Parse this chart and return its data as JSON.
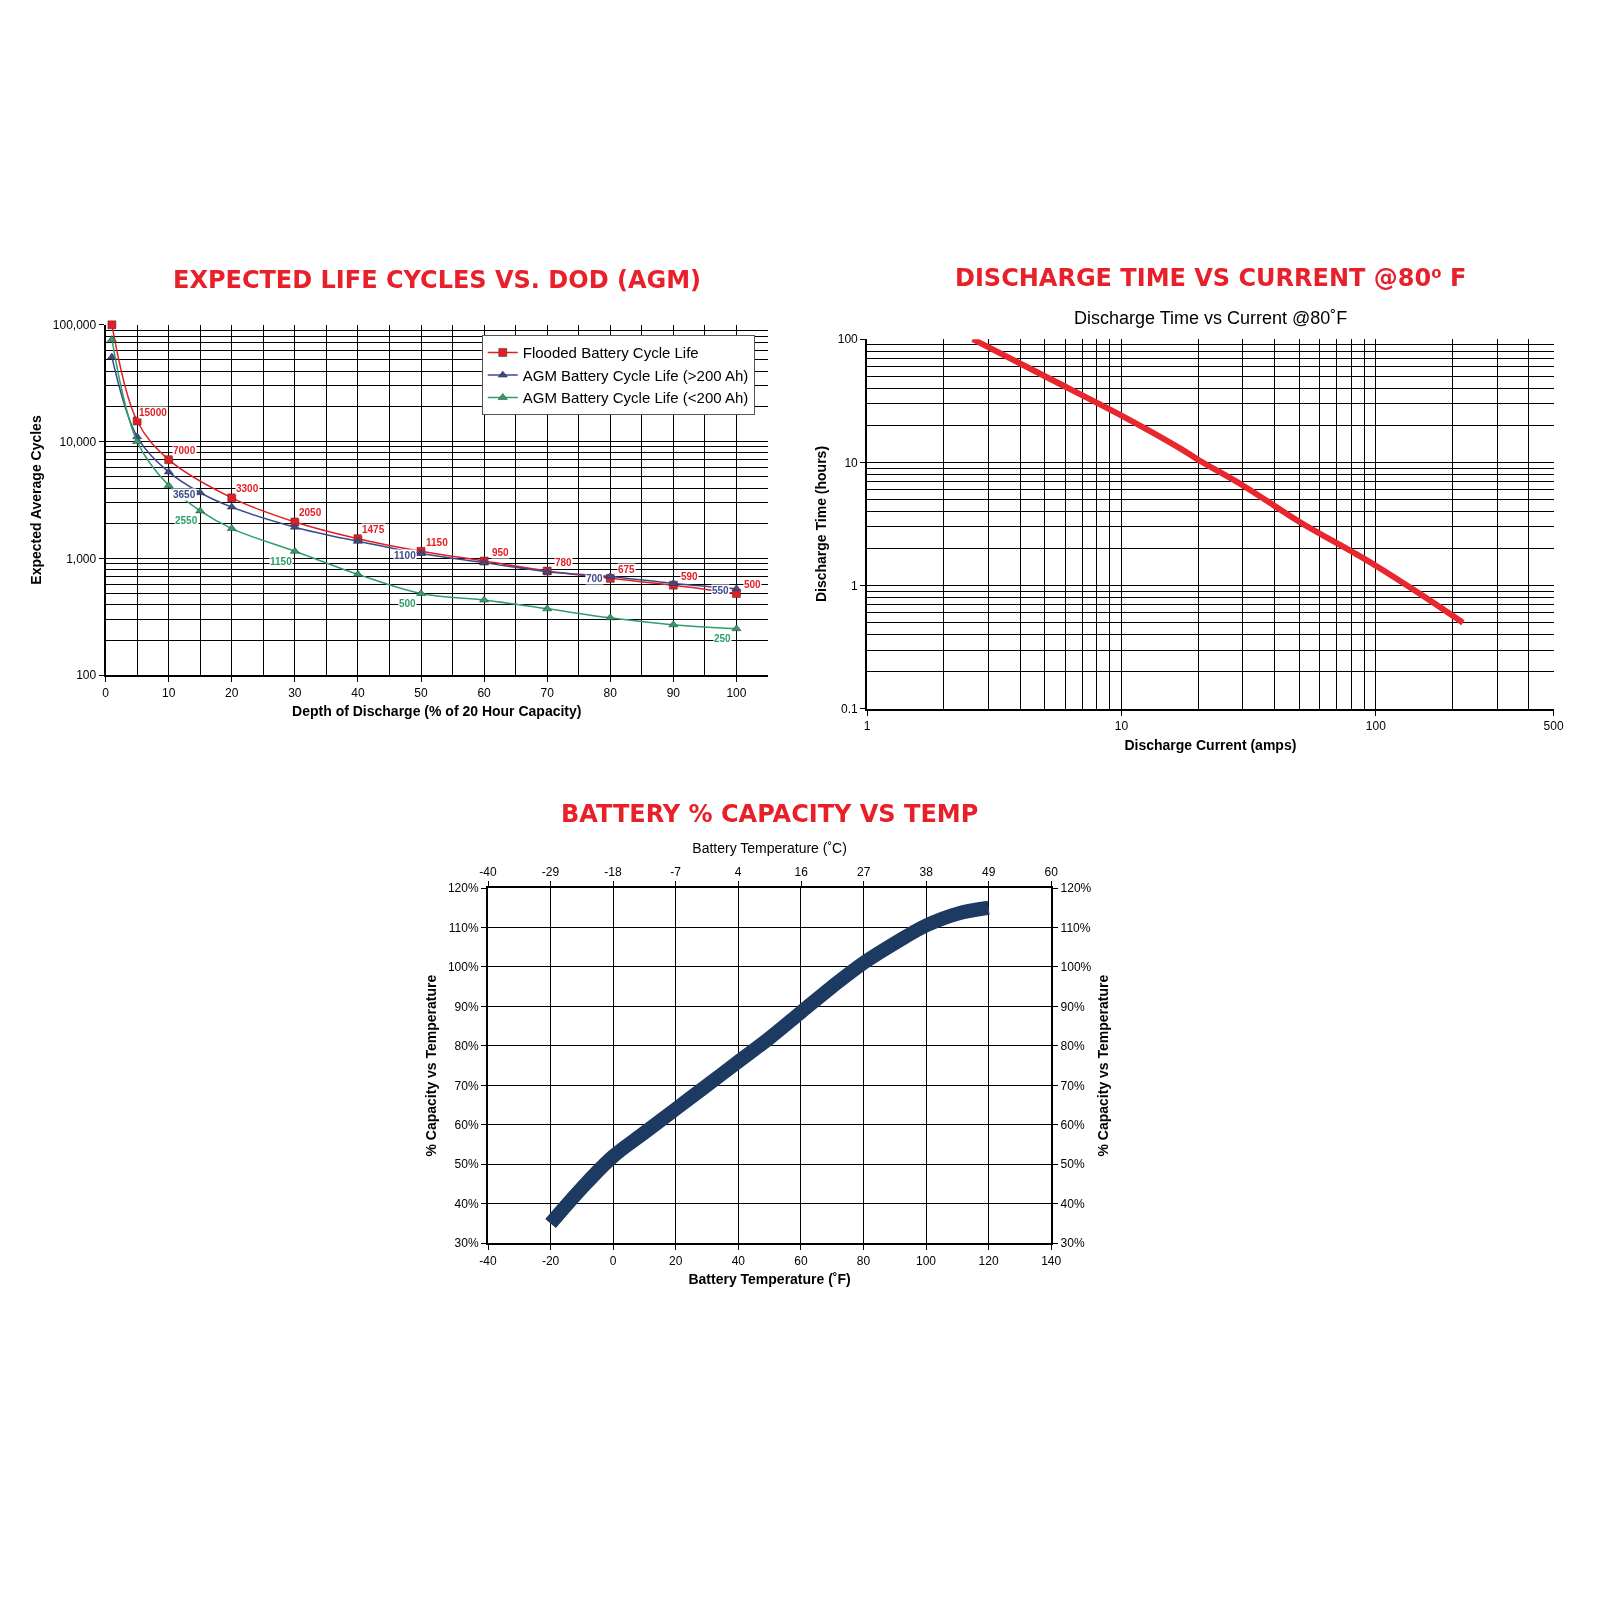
{
  "chart_data": [
    {
      "type": "line",
      "title": "EXPECTED LIFE CYCLES VS. DOD (AGM)",
      "xlabel": "Depth of Discharge (% of 20 Hour Capacity)",
      "ylabel": "Expected Average Cycles",
      "log": "y",
      "grid": true,
      "legend": "top right",
      "xlim": [
        0,
        105
      ],
      "xticks": [
        0,
        10,
        20,
        30,
        40,
        50,
        60,
        70,
        80,
        90,
        100
      ],
      "ylim": [
        100,
        100000
      ],
      "yticks": [
        100,
        {
          "value": 1000,
          "label": "1,000"
        },
        {
          "value": 10000,
          "label": "10,000"
        },
        {
          "value": 100000,
          "label": "100,000"
        }
      ],
      "series": [
        {
          "name": "Flooded Battery Cycle Life",
          "color": "#e31e24",
          "marker": "square",
          "x": [
            1,
            5,
            10,
            20,
            30,
            40,
            50,
            60,
            70,
            80,
            90,
            100
          ],
          "values": [
            100000,
            15000,
            7000,
            3300,
            2050,
            1475,
            1150,
            950,
            780,
            675,
            590,
            500
          ],
          "value_labels": [
            null,
            "15000",
            "7000",
            "3300",
            "2050",
            "1475",
            "1150",
            "950",
            "780",
            "675",
            "590",
            "500"
          ]
        },
        {
          "name": "AGM Battery Cycle Life (>200 Ah)",
          "color": "#3a4a8c",
          "marker": "triangle",
          "x": [
            1,
            5,
            10,
            15,
            20,
            30,
            40,
            50,
            60,
            70,
            80,
            90,
            100
          ],
          "values": [
            53000,
            11000,
            5500,
            3650,
            2750,
            1850,
            1400,
            1100,
            920,
            770,
            700,
            610,
            550
          ],
          "value_labels": [
            null,
            null,
            null,
            "3650",
            null,
            null,
            null,
            "1100",
            null,
            null,
            "700",
            null,
            "550"
          ]
        },
        {
          "name": "AGM Battery Cycle Life (<200 Ah)",
          "color": "#2e9e6a",
          "marker": "triangle",
          "x": [
            1,
            5,
            10,
            15,
            20,
            30,
            40,
            50,
            60,
            70,
            80,
            90,
            100
          ],
          "values": [
            75000,
            10000,
            4200,
            2550,
            1800,
            1150,
            730,
            500,
            440,
            370,
            310,
            270,
            250
          ],
          "value_labels": [
            null,
            null,
            null,
            "2550",
            null,
            "1150",
            null,
            "500",
            null,
            null,
            null,
            null,
            "250"
          ]
        }
      ]
    },
    {
      "type": "line",
      "title": "DISCHARGE TIME VS CURRENT @80⁰ F",
      "subtitle": "Discharge Time vs Current @80˚F",
      "xlabel": "Discharge Current (amps)",
      "ylabel": "Discharge Time (hours)",
      "log": "xy",
      "grid": true,
      "xlim": [
        1,
        500
      ],
      "xticks": [
        1,
        10,
        100,
        500
      ],
      "ylim": [
        0.1,
        100
      ],
      "yticks": [
        0.1,
        1,
        10,
        100
      ],
      "series": [
        {
          "color": "#e8262d",
          "x": [
            2.6,
            5,
            10,
            17,
            20,
            30,
            50,
            80,
            100,
            150,
            220
          ],
          "values": [
            100,
            50,
            24,
            13,
            10.5,
            6.5,
            3.3,
            1.9,
            1.45,
            0.85,
            0.5
          ]
        }
      ]
    },
    {
      "type": "line",
      "title": "BATTERY % CAPACITY VS TEMP",
      "xlabel": "Battery Temperature (˚F)",
      "x2label": "Battery Temperature (˚C)",
      "ylabel": "% Capacity vs Temperature",
      "y2label": "% Capacity vs Temperature",
      "grid": true,
      "xlim": [
        -40,
        140
      ],
      "xticks": [
        -40,
        -20,
        0,
        20,
        40,
        60,
        80,
        100,
        120,
        140
      ],
      "x2lim": [
        -40,
        60
      ],
      "x2ticks": [
        -40,
        {
          "value": -28.9,
          "label": "-29"
        },
        {
          "value": -17.8,
          "label": "-18"
        },
        {
          "value": -6.7,
          "label": "-7"
        },
        {
          "value": 4.4,
          "label": "4"
        },
        {
          "value": 15.6,
          "label": "16"
        },
        {
          "value": 26.7,
          "label": "27"
        },
        {
          "value": 37.8,
          "label": "38"
        },
        {
          "value": 48.9,
          "label": "49"
        },
        60
      ],
      "ylim": [
        30,
        120
      ],
      "yticks": [
        {
          "value": 30,
          "label": "30%"
        },
        {
          "value": 40,
          "label": "40%"
        },
        {
          "value": 50,
          "label": "50%"
        },
        {
          "value": 60,
          "label": "60%"
        },
        {
          "value": 70,
          "label": "70%"
        },
        {
          "value": 80,
          "label": "80%"
        },
        {
          "value": 90,
          "label": "90%"
        },
        {
          "value": 100,
          "label": "100%"
        },
        {
          "value": 110,
          "label": "110%"
        },
        {
          "value": 120,
          "label": "120%"
        }
      ],
      "y2lim": [
        30,
        120
      ],
      "y2ticks": [
        {
          "value": 30,
          "label": "30%"
        },
        {
          "value": 40,
          "label": "40%"
        },
        {
          "value": 50,
          "label": "50%"
        },
        {
          "value": 60,
          "label": "60%"
        },
        {
          "value": 70,
          "label": "70%"
        },
        {
          "value": 80,
          "label": "80%"
        },
        {
          "value": 90,
          "label": "90%"
        },
        {
          "value": 100,
          "label": "100%"
        },
        {
          "value": 110,
          "label": "110%"
        },
        {
          "value": 120,
          "label": "120%"
        }
      ],
      "series": [
        {
          "color": "#1c3a62",
          "x": [
            -20,
            -10,
            0,
            10,
            20,
            30,
            40,
            50,
            60,
            70,
            80,
            90,
            100,
            110,
            120
          ],
          "values": [
            35,
            44,
            52,
            58,
            64,
            70,
            76,
            82,
            88.5,
            95,
            101,
            106,
            110.5,
            113.5,
            115
          ]
        }
      ]
    }
  ]
}
